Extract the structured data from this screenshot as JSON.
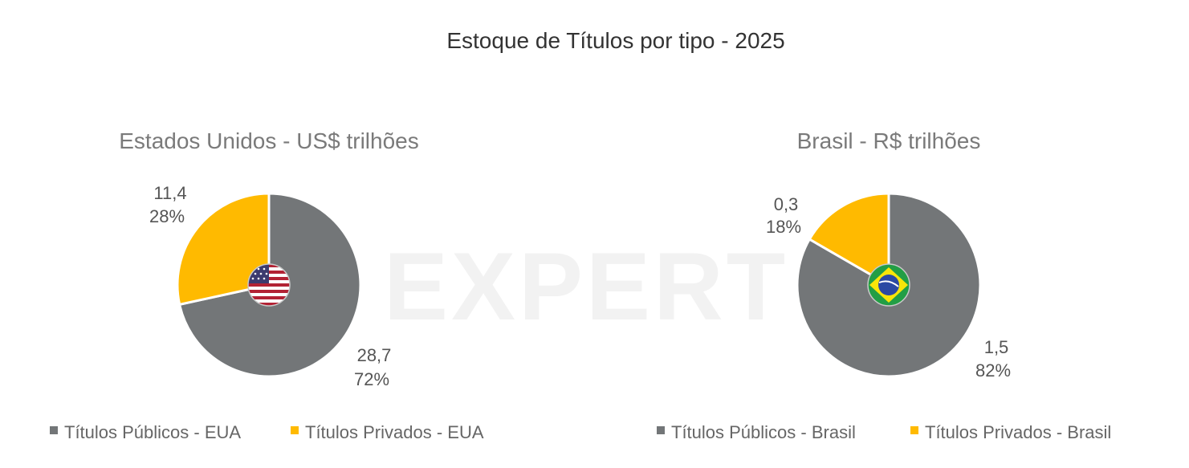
{
  "title": "Estoque de Títulos por tipo - 2025",
  "watermark": "EXPERT",
  "chart_data": [
    {
      "type": "pie",
      "title": "Estados Unidos - US$ trilhões",
      "slices": [
        {
          "name": "Títulos Públicos - EUA",
          "value": 28.7,
          "value_label": "28,7",
          "percent_label": "72%",
          "color": "#737678"
        },
        {
          "name": "Títulos Privados - EUA",
          "value": 11.4,
          "value_label": "11,4",
          "percent_label": "28%",
          "color": "#FFBA00"
        }
      ],
      "center_icon": "usa-flag-icon",
      "legend_position": "bottom"
    },
    {
      "type": "pie",
      "title": "Brasil - R$ trilhões",
      "slices": [
        {
          "name": "Títulos Públicos - Brasil",
          "value": 1.5,
          "value_label": "1,5",
          "percent_label": "82%",
          "color": "#737678"
        },
        {
          "name": "Títulos Privados - Brasil",
          "value": 0.3,
          "value_label": "0,3",
          "percent_label": "18%",
          "color": "#FFBA00"
        }
      ],
      "center_icon": "brazil-flag-icon",
      "legend_position": "bottom"
    }
  ]
}
